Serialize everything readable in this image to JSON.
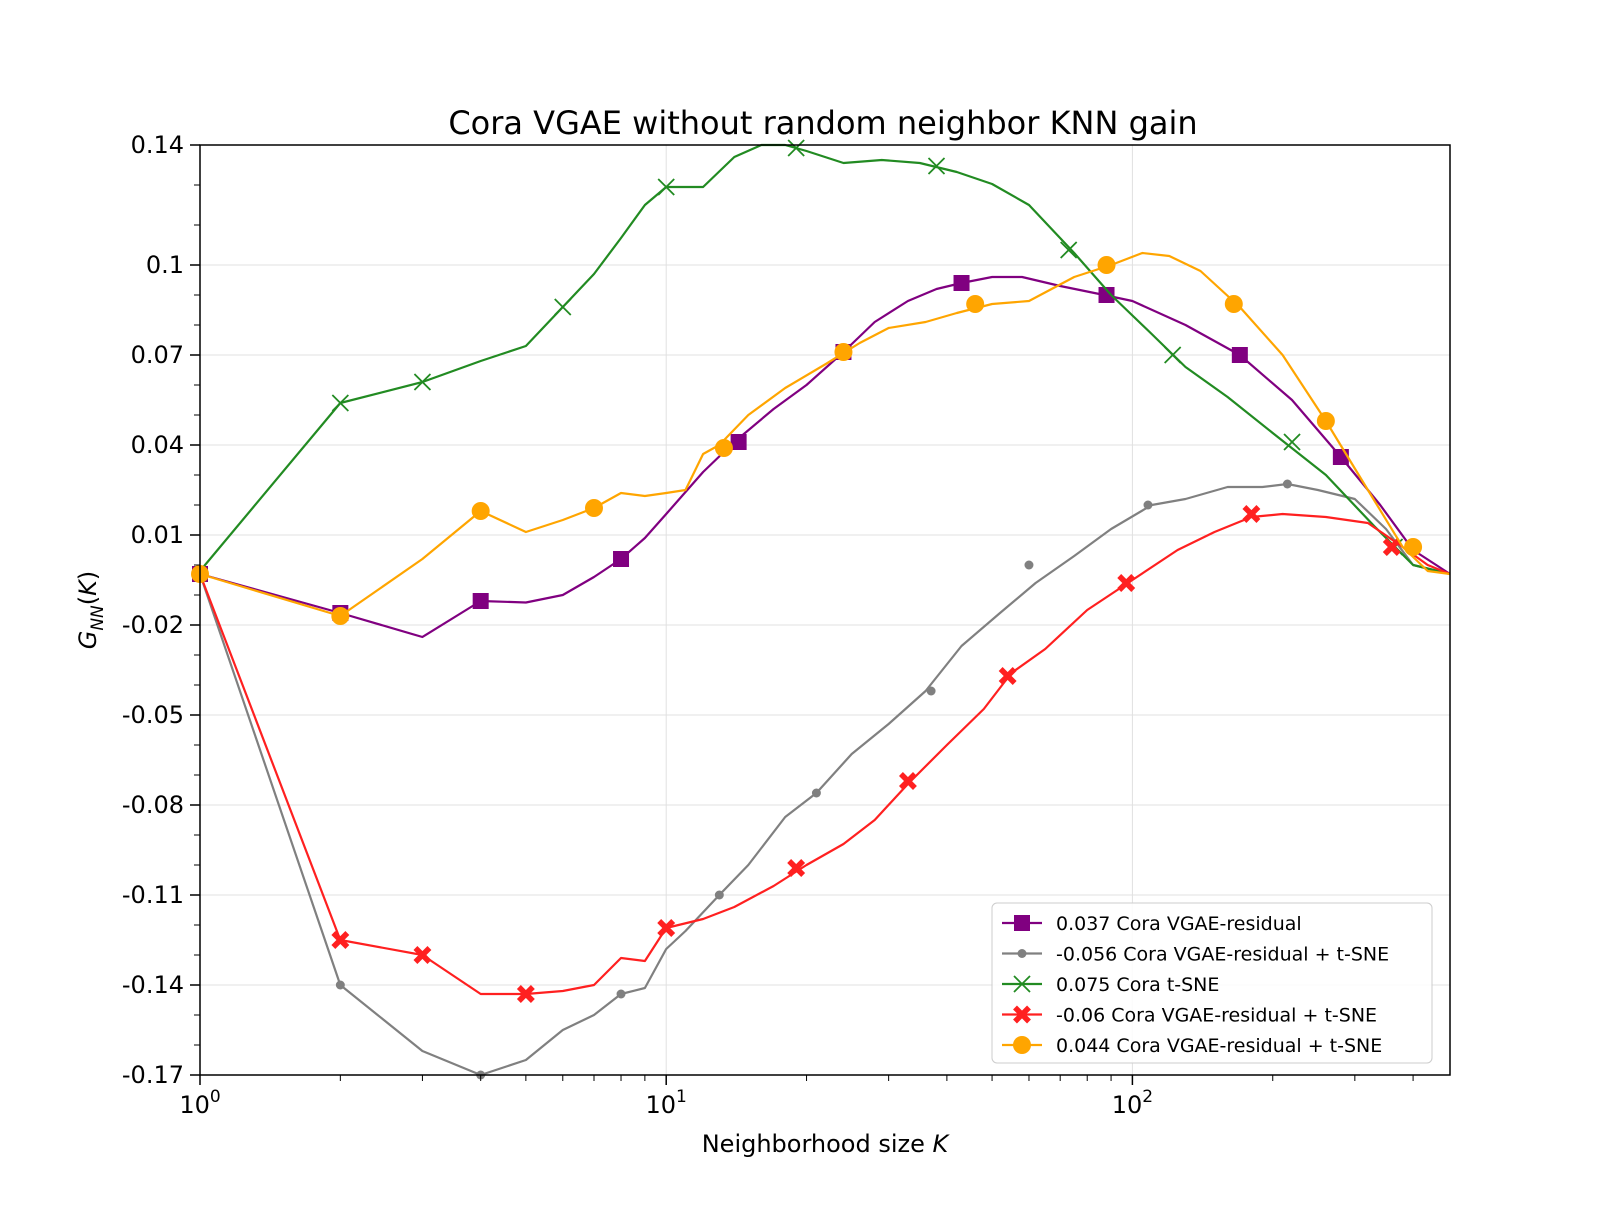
{
  "chart_data": {
    "type": "line",
    "title": "Cora VGAE without random neighbor KNN gain",
    "xlabel": "Neighborhood size K",
    "ylabel": "G_NN(K)",
    "xscale": "log",
    "xlim": [
      1,
      480
    ],
    "ylim": [
      -0.17,
      0.14
    ],
    "grid": true,
    "legend_position": "lower-right",
    "x_ticks": [
      {
        "base": "10",
        "exp": "0"
      },
      {
        "base": "10",
        "exp": "1"
      },
      {
        "base": "10",
        "exp": "2"
      }
    ],
    "y_ticks": [
      "0.14",
      "0.1",
      "0.07",
      "0.04",
      "0.01",
      "-0.02",
      "-0.05",
      "-0.08",
      "-0.11",
      "-0.14",
      "-0.17"
    ],
    "series": [
      {
        "name": "0.037 Cora VGAE-residual",
        "color": "#800080",
        "marker": "square",
        "x": [
          1,
          2,
          3,
          4,
          5,
          6,
          7,
          8,
          9,
          10,
          12,
          14,
          17,
          20,
          24,
          28,
          33,
          38,
          43,
          50,
          58,
          70,
          87,
          100,
          130,
          170,
          220,
          280,
          340,
          400,
          480
        ],
        "y": [
          -0.003,
          -0.016,
          -0.024,
          -0.012,
          -0.0125,
          -0.01,
          -0.004,
          0.002,
          0.009,
          0.017,
          0.031,
          0.041,
          0.052,
          0.06,
          0.071,
          0.081,
          0.088,
          0.092,
          0.094,
          0.096,
          0.096,
          0.093,
          0.09,
          0.088,
          0.08,
          0.07,
          0.055,
          0.036,
          0.02,
          0.005,
          -0.003
        ],
        "markers_x": [
          1,
          2,
          4,
          8,
          14.3,
          24,
          43,
          88,
          170,
          280
        ],
        "markers_y": [
          -0.003,
          -0.016,
          -0.012,
          0.002,
          0.041,
          0.071,
          0.094,
          0.09,
          0.07,
          0.036
        ]
      },
      {
        "name": "-0.056 Cora VGAE-residual + t-SNE",
        "color": "#808080",
        "marker": "dot",
        "x": [
          1,
          2,
          3,
          4,
          5,
          6,
          7,
          8,
          9,
          10,
          11,
          13,
          15,
          18,
          21,
          25,
          30,
          36,
          43,
          52,
          62,
          75,
          90,
          110,
          130,
          160,
          190,
          215,
          250,
          300,
          350,
          400,
          480
        ],
        "y": [
          -0.003,
          -0.14,
          -0.162,
          -0.17,
          -0.165,
          -0.155,
          -0.15,
          -0.143,
          -0.141,
          -0.128,
          -0.122,
          -0.11,
          -0.1,
          -0.084,
          -0.076,
          -0.063,
          -0.053,
          -0.042,
          -0.027,
          -0.016,
          -0.006,
          0.003,
          0.012,
          0.02,
          0.022,
          0.026,
          0.026,
          0.027,
          0.025,
          0.022,
          0.012,
          0.0,
          -0.003
        ],
        "markers_x": [
          1,
          2,
          4,
          8,
          13,
          21,
          37,
          60,
          108,
          215
        ],
        "markers_y": [
          -0.003,
          -0.14,
          -0.17,
          -0.143,
          -0.11,
          -0.076,
          -0.042,
          -0.0,
          0.02,
          0.027
        ]
      },
      {
        "name": "0.075 Cora t-SNE",
        "color": "#228B22",
        "marker": "x",
        "x": [
          1,
          2,
          3,
          4,
          5,
          6,
          7,
          8,
          9,
          10,
          12,
          14,
          16,
          18,
          20,
          24,
          29,
          35,
          42,
          50,
          60,
          75,
          90,
          110,
          130,
          160,
          200,
          260,
          330,
          400,
          480
        ],
        "y": [
          -0.002,
          0.054,
          0.061,
          0.068,
          0.073,
          0.086,
          0.097,
          0.109,
          0.12,
          0.126,
          0.126,
          0.136,
          0.14,
          0.14,
          0.138,
          0.134,
          0.135,
          0.134,
          0.131,
          0.127,
          0.12,
          0.104,
          0.09,
          0.077,
          0.066,
          0.056,
          0.044,
          0.03,
          0.013,
          0.0,
          -0.003
        ],
        "markers_x": [
          2,
          3,
          6,
          10,
          19,
          38,
          73,
          122,
          220,
          365
        ],
        "markers_y": [
          0.054,
          0.061,
          0.086,
          0.126,
          0.139,
          0.133,
          0.105,
          0.07,
          0.041,
          0.006
        ]
      },
      {
        "name": "-0.06 Cora VGAE-residual + t-SNE",
        "color": "#FF2020",
        "marker": "X",
        "x": [
          1,
          2,
          3,
          4,
          5,
          6,
          7,
          8,
          9,
          10,
          12,
          14,
          17,
          20,
          24,
          28,
          33,
          40,
          48,
          55,
          65,
          80,
          100,
          125,
          150,
          180,
          210,
          260,
          320,
          380,
          430,
          480
        ],
        "y": [
          -0.003,
          -0.125,
          -0.13,
          -0.143,
          -0.143,
          -0.142,
          -0.14,
          -0.131,
          -0.132,
          -0.121,
          -0.118,
          -0.114,
          -0.107,
          -0.1,
          -0.093,
          -0.085,
          -0.073,
          -0.06,
          -0.048,
          -0.036,
          -0.028,
          -0.015,
          -0.005,
          0.005,
          0.011,
          0.016,
          0.017,
          0.016,
          0.014,
          0.006,
          0.0,
          -0.003
        ],
        "markers_x": [
          2,
          3,
          5,
          10,
          19,
          33,
          54,
          97,
          180,
          360
        ],
        "markers_y": [
          -0.125,
          -0.13,
          -0.143,
          -0.121,
          -0.101,
          -0.072,
          -0.037,
          -0.006,
          0.017,
          0.006
        ]
      },
      {
        "name": "0.044 Cora VGAE-residual + t-SNE",
        "color": "#FFA500",
        "marker": "circle",
        "x": [
          1,
          2,
          3,
          4,
          5,
          6,
          7,
          8,
          9,
          10,
          11,
          12,
          13,
          15,
          18,
          22,
          26,
          30,
          36,
          42,
          50,
          60,
          75,
          90,
          105,
          120,
          140,
          170,
          210,
          260,
          320,
          380,
          430,
          480
        ],
        "y": [
          -0.003,
          -0.017,
          0.002,
          0.018,
          0.011,
          0.015,
          0.019,
          0.024,
          0.023,
          0.024,
          0.025,
          0.037,
          0.04,
          0.05,
          0.059,
          0.067,
          0.074,
          0.079,
          0.081,
          0.084,
          0.087,
          0.088,
          0.096,
          0.1,
          0.104,
          0.103,
          0.098,
          0.086,
          0.07,
          0.048,
          0.025,
          0.006,
          -0.002,
          -0.003
        ],
        "markers_x": [
          1,
          2,
          4,
          7,
          13.3,
          24,
          46,
          88,
          165,
          260,
          400
        ],
        "markers_y": [
          -0.003,
          -0.017,
          0.018,
          0.019,
          0.039,
          0.071,
          0.087,
          0.1,
          0.087,
          0.048,
          0.006
        ]
      }
    ]
  }
}
